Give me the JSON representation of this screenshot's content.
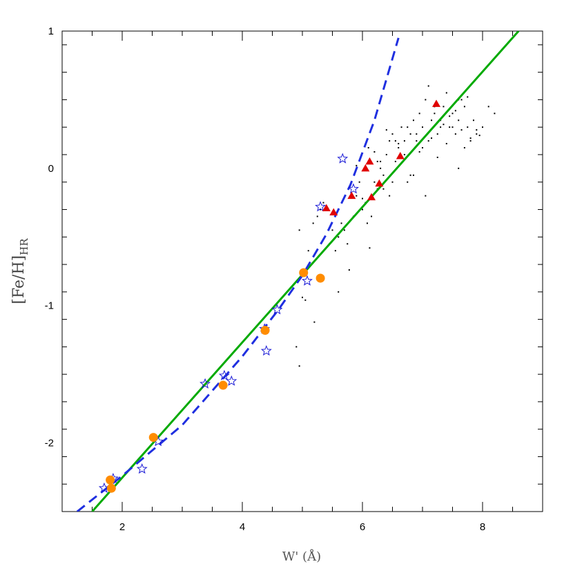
{
  "chart_data": {
    "type": "scatter",
    "title": "",
    "xlabel": "W' (Å)",
    "ylabel": {
      "main": "[Fe/H]",
      "sub": "HR"
    },
    "xlim": [
      1,
      9
    ],
    "ylim": [
      -2.5,
      1
    ],
    "x_ticks_major": [
      2,
      4,
      6,
      8
    ],
    "x_tick_labels": [
      "2",
      "4",
      "6",
      "8"
    ],
    "y_ticks_major": [
      -2,
      -1,
      0,
      1
    ],
    "y_tick_labels": [
      "-2",
      "-1",
      "0",
      "1"
    ],
    "x_minor_step": 0.5,
    "y_minor_step": 0.2,
    "grid": false,
    "legend": "none",
    "colors": {
      "circles": "#ff8c00",
      "stars": "#1a1ad6",
      "triangles": "#e00000",
      "dots": "#000000",
      "solid_line": "#00aa00",
      "dashed_line": "#1f2fe0"
    },
    "lines": [
      {
        "style": "solid",
        "x": [
          1.5,
          8.6
        ],
        "y": [
          -2.5,
          1.0
        ]
      },
      {
        "style": "dashed",
        "x": [
          1.25,
          2.0,
          3.0,
          4.0,
          4.6,
          5.0,
          5.4,
          5.8,
          6.2,
          6.6
        ],
        "y": [
          -2.5,
          -2.24,
          -1.87,
          -1.37,
          -1.03,
          -0.78,
          -0.48,
          -0.12,
          0.35,
          0.95
        ]
      }
    ],
    "series": [
      {
        "marker": "circle",
        "x": [
          1.8,
          1.82,
          2.52,
          3.68,
          4.38,
          5.02,
          5.3
        ],
        "y": [
          -2.27,
          -2.33,
          -1.96,
          -1.58,
          -1.18,
          -0.76,
          -0.8
        ]
      },
      {
        "marker": "star",
        "x": [
          1.7,
          1.85,
          2.33,
          2.6,
          3.38,
          3.7,
          3.82,
          4.37,
          4.4,
          4.58,
          5.08,
          5.3,
          5.67,
          5.85
        ],
        "y": [
          -2.33,
          -2.26,
          -2.19,
          -1.99,
          -1.57,
          -1.51,
          -1.55,
          -1.17,
          -1.33,
          -1.03,
          -0.82,
          -0.28,
          0.07,
          -0.15
        ]
      },
      {
        "marker": "triangle",
        "x": [
          5.4,
          5.52,
          5.82,
          6.05,
          6.12,
          6.15,
          6.28,
          6.63,
          7.23
        ],
        "y": [
          -0.29,
          -0.32,
          -0.2,
          0.0,
          0.05,
          -0.21,
          -0.11,
          0.09,
          0.47
        ]
      },
      {
        "marker": "dot",
        "x": [
          4.95,
          5.0,
          5.05,
          5.1,
          5.18,
          5.25,
          5.3,
          5.35,
          5.45,
          5.55,
          5.6,
          5.65,
          5.7,
          5.78,
          5.85,
          5.9,
          5.95,
          6.0,
          6.05,
          6.08,
          6.12,
          6.15,
          6.2,
          6.25,
          6.3,
          6.35,
          6.4,
          6.45,
          6.5,
          6.55,
          6.6,
          6.65,
          6.7,
          6.75,
          6.8,
          6.85,
          6.9,
          6.95,
          7.0,
          7.05,
          7.1,
          7.15,
          7.2,
          7.25,
          7.3,
          7.35,
          7.4,
          7.45,
          7.5,
          7.55,
          7.6,
          7.65,
          7.7,
          7.75,
          7.8,
          7.85,
          7.9,
          8.0,
          8.1,
          8.2,
          6.3,
          6.5,
          6.7,
          6.9,
          7.1,
          7.3,
          7.5,
          7.7,
          7.9,
          6.2,
          6.4,
          6.6,
          6.8,
          7.0,
          7.2,
          7.4,
          7.6,
          7.8,
          5.9,
          6.1,
          6.35,
          6.55,
          6.75,
          6.95,
          7.15,
          7.35,
          7.55,
          7.75,
          7.95,
          7.25,
          7.45,
          7.65,
          7.05,
          6.85,
          6.45,
          5.75,
          5.5,
          4.9,
          4.95,
          5.2,
          5.6,
          6.0,
          6.25,
          7.6
        ],
        "y": [
          -0.45,
          -0.94,
          -0.96,
          -0.6,
          -0.4,
          -0.35,
          -0.3,
          -0.25,
          -0.55,
          -0.6,
          -0.5,
          -0.4,
          -0.45,
          -0.74,
          -0.35,
          -0.2,
          -0.1,
          -0.3,
          -0.25,
          -0.4,
          -0.58,
          -0.35,
          -0.1,
          0.05,
          0.0,
          -0.15,
          0.1,
          0.2,
          0.25,
          0.05,
          0.15,
          0.3,
          0.2,
          -0.1,
          0.25,
          0.35,
          0.2,
          0.4,
          0.3,
          0.5,
          0.6,
          0.35,
          0.45,
          0.25,
          0.3,
          0.45,
          0.55,
          0.3,
          0.4,
          0.25,
          0.35,
          0.5,
          0.45,
          0.3,
          0.2,
          0.35,
          0.25,
          0.3,
          0.45,
          0.4,
          0.05,
          -0.1,
          0.1,
          0.25,
          0.2,
          0.35,
          0.3,
          0.15,
          0.28,
          0.12,
          0.28,
          0.18,
          -0.05,
          0.15,
          0.4,
          0.18,
          0.5,
          0.22,
          0.02,
          0.15,
          -0.05,
          0.2,
          0.3,
          0.12,
          0.22,
          0.32,
          0.42,
          0.52,
          0.24,
          0.08,
          0.38,
          0.28,
          -0.2,
          -0.05,
          -0.2,
          -0.55,
          -0.45,
          -1.3,
          -1.44,
          -1.12,
          -0.9,
          -0.22,
          -0.15,
          0.0
        ]
      }
    ]
  }
}
